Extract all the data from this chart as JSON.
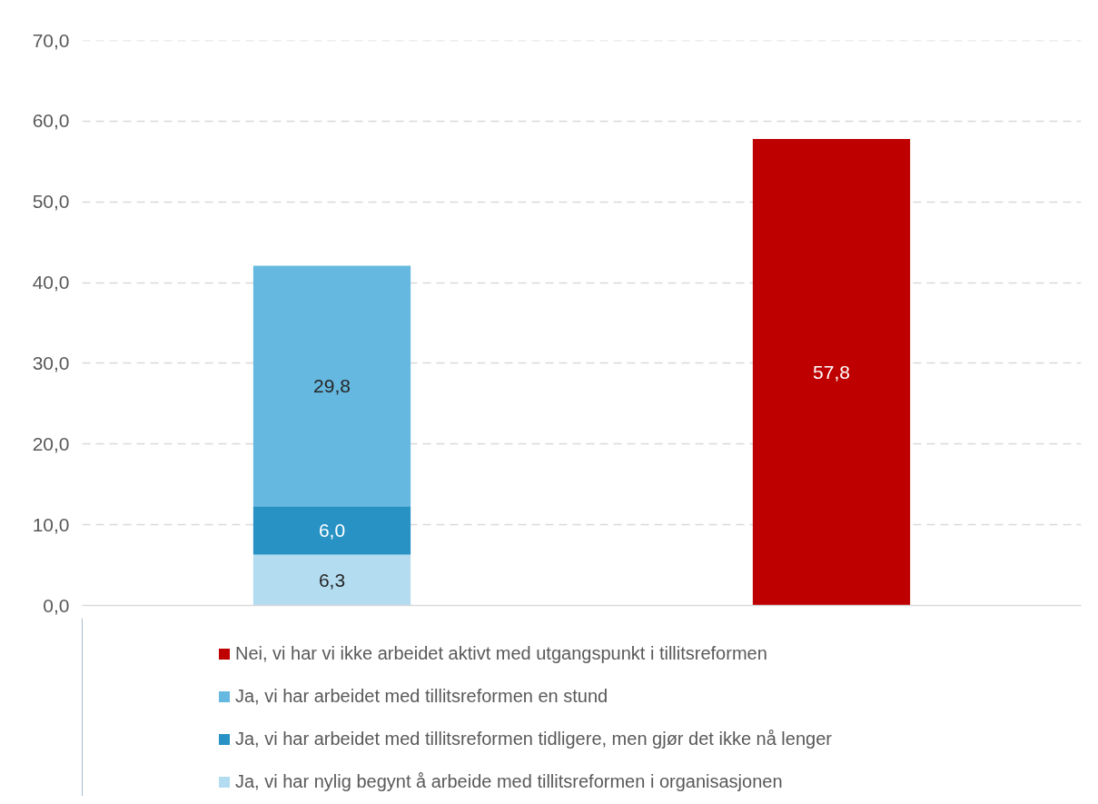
{
  "chart_data": {
    "type": "bar",
    "stacked": true,
    "categories": [
      null,
      null
    ],
    "series": [
      {
        "name": "Ja, vi har nylig begynt å arbeide med tillitsreformen i organisasjonen",
        "color": "#b3dcf0",
        "values": [
          6.3,
          null
        ],
        "value_labels": [
          "6,3",
          null
        ]
      },
      {
        "name": "Ja, vi har arbeidet med tillitsreformen tidligere, men gjør det ikke nå lenger",
        "color": "#2792c3",
        "values": [
          6.0,
          null
        ],
        "value_labels": [
          "6,0",
          null
        ]
      },
      {
        "name": "Ja, vi har arbeidet med tillitsreformen en stund",
        "color": "#65b8e0",
        "values": [
          29.8,
          null
        ],
        "value_labels": [
          "29,8",
          null
        ]
      },
      {
        "name": "Nei, vi har vi ikke arbeidet aktivt med utgangspunkt i tillitsreformen",
        "color": "#be0000",
        "values": [
          null,
          57.8
        ],
        "value_labels": [
          null,
          "57,8"
        ]
      }
    ],
    "ylim": [
      0,
      70
    ],
    "yticks": [
      {
        "value": 0,
        "label": "0,0"
      },
      {
        "value": 10,
        "label": "10,0"
      },
      {
        "value": 20,
        "label": "20,0"
      },
      {
        "value": 30,
        "label": "30,0"
      },
      {
        "value": 40,
        "label": "40,0"
      },
      {
        "value": 50,
        "label": "50,0"
      },
      {
        "value": 60,
        "label": "60,0"
      },
      {
        "value": 70,
        "label": "70,0"
      }
    ],
    "tick_labels": "y",
    "grid": "y",
    "legend": "bottom"
  }
}
